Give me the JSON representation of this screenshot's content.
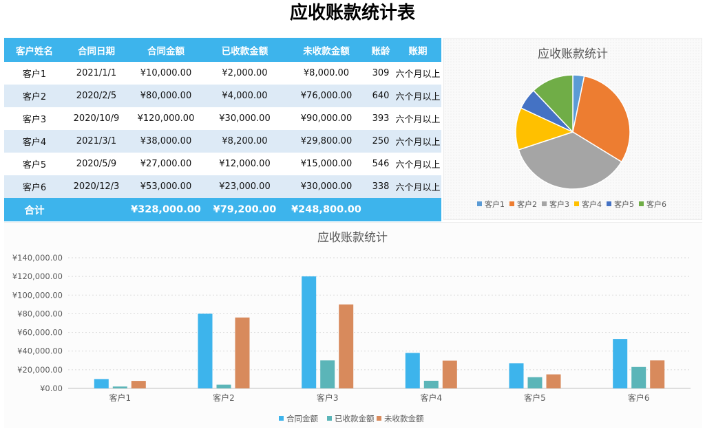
{
  "page": {
    "title": "应收账款统计表"
  },
  "table": {
    "headers": [
      "客户姓名",
      "合同日期",
      "合同金额",
      "已收款金额",
      "未收款金额",
      "账龄",
      "账期"
    ],
    "rows": [
      [
        "客户1",
        "2021/1/1",
        "¥10,000.00",
        "¥2,000.00",
        "¥8,000.00",
        "309",
        "六个月以上"
      ],
      [
        "客户2",
        "2020/2/5",
        "¥80,000.00",
        "¥4,000.00",
        "¥76,000.00",
        "640",
        "六个月以上"
      ],
      [
        "客户3",
        "2020/10/9",
        "¥120,000.00",
        "¥30,000.00",
        "¥90,000.00",
        "393",
        "六个月以上"
      ],
      [
        "客户4",
        "2021/3/1",
        "¥38,000.00",
        "¥8,200.00",
        "¥29,800.00",
        "250",
        "六个月以上"
      ],
      [
        "客户5",
        "2020/5/9",
        "¥27,000.00",
        "¥12,000.00",
        "¥15,000.00",
        "546",
        "六个月以上"
      ],
      [
        "客户6",
        "2020/12/3",
        "¥53,000.00",
        "¥23,000.00",
        "¥30,000.00",
        "338",
        "六个月以上"
      ]
    ],
    "total": [
      "合计",
      "",
      "¥328,000.00",
      "¥79,200.00",
      "¥248,800.00",
      "",
      ""
    ]
  },
  "chart_data": [
    {
      "type": "pie",
      "title": "应收账款统计",
      "categories": [
        "客户1",
        "客户2",
        "客户3",
        "客户4",
        "客户5",
        "客户6"
      ],
      "values": [
        8000,
        76000,
        90000,
        29800,
        15000,
        30000
      ],
      "colors": [
        "#5b9bd5",
        "#ed7d31",
        "#a5a5a5",
        "#ffc000",
        "#4472c4",
        "#70ad47"
      ],
      "legend": "bottom"
    },
    {
      "type": "bar",
      "title": "应收账款统计",
      "categories": [
        "客户1",
        "客户2",
        "客户3",
        "客户4",
        "客户5",
        "客户6"
      ],
      "series": [
        {
          "name": "合同金额",
          "values": [
            10000,
            80000,
            120000,
            38000,
            27000,
            53000
          ],
          "color": "#3db4ec"
        },
        {
          "name": "已收款金额",
          "values": [
            2000,
            4000,
            30000,
            8200,
            12000,
            23000
          ],
          "color": "#5bb5b8"
        },
        {
          "name": "未收款金额",
          "values": [
            8000,
            76000,
            90000,
            29800,
            15000,
            30000
          ],
          "color": "#d88a5c"
        }
      ],
      "ylim": [
        0,
        140000
      ],
      "yticks": [
        "¥0.00",
        "¥20,000.00",
        "¥40,000.00",
        "¥60,000.00",
        "¥80,000.00",
        "¥100,000.00",
        "¥120,000.00",
        "¥140,000.00"
      ],
      "grid": true,
      "legend": "bottom"
    }
  ]
}
